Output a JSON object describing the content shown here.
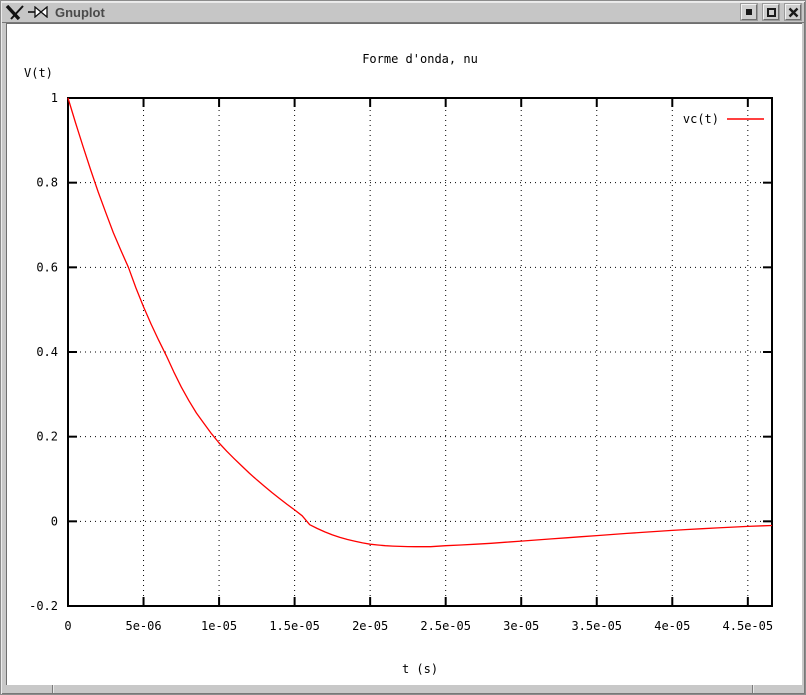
{
  "window": {
    "title": "Gnuplot",
    "titlebar_icons": [
      "x11-logo",
      "pushpin"
    ],
    "titlebar_buttons": [
      {
        "name": "minimize",
        "glyph": "filled-square"
      },
      {
        "name": "maximize",
        "glyph": "hollow-square"
      },
      {
        "name": "close",
        "glyph": "x"
      }
    ]
  },
  "colors": {
    "curve": "#ff0000",
    "titlebar_bg": "#c6c6c6",
    "window_frame": "#c8c8c8",
    "plot_bg": "#ffffff",
    "axis": "#000000",
    "grid": "#000000",
    "title_text": "#4a4a4a"
  },
  "chart_data": {
    "type": "line",
    "title": "Forme d'onda, nu",
    "xlabel": "t (s)",
    "ylabel": "V(t)",
    "xlim": [
      0,
      4.66e-05
    ],
    "ylim": [
      -0.2,
      1.0
    ],
    "grid": true,
    "legend_position": "top-right-inside",
    "xticks": [
      {
        "t": 0,
        "label": "0"
      },
      {
        "t": 5e-06,
        "label": "5e-06"
      },
      {
        "t": 1e-05,
        "label": "1e-05"
      },
      {
        "t": 1.5e-05,
        "label": "1.5e-05"
      },
      {
        "t": 2e-05,
        "label": "2e-05"
      },
      {
        "t": 2.5e-05,
        "label": "2.5e-05"
      },
      {
        "t": 3e-05,
        "label": "3e-05"
      },
      {
        "t": 3.5e-05,
        "label": "3.5e-05"
      },
      {
        "t": 4e-05,
        "label": "4e-05"
      },
      {
        "t": 4.5e-05,
        "label": "4.5e-05"
      }
    ],
    "yticks": [
      {
        "v": 1,
        "label": "1"
      },
      {
        "v": 0.8,
        "label": "0.8"
      },
      {
        "v": 0.6,
        "label": "0.6"
      },
      {
        "v": 0.4,
        "label": "0.4"
      },
      {
        "v": 0.2,
        "label": "0.2"
      },
      {
        "v": 0,
        "label": "0"
      },
      {
        "v": -0.2,
        "label": "-0.2"
      }
    ],
    "series": [
      {
        "name": "vc(t)",
        "color": "#ff0000",
        "points": [
          [
            0,
            1.0
          ],
          [
            5e-07,
            0.941
          ],
          [
            1e-06,
            0.885
          ],
          [
            1.5e-06,
            0.83
          ],
          [
            2e-06,
            0.778
          ],
          [
            2.5e-06,
            0.729
          ],
          [
            3e-06,
            0.682
          ],
          [
            3.5e-06,
            0.64
          ],
          [
            4e-06,
            0.6
          ],
          [
            4.5e-06,
            0.551
          ],
          [
            5e-06,
            0.507
          ],
          [
            5.5e-06,
            0.466
          ],
          [
            6e-06,
            0.428
          ],
          [
            6.5e-06,
            0.392
          ],
          [
            7e-06,
            0.353
          ],
          [
            7.5e-06,
            0.317
          ],
          [
            8e-06,
            0.285
          ],
          [
            8.5e-06,
            0.256
          ],
          [
            9e-06,
            0.231
          ],
          [
            9.5e-06,
            0.207
          ],
          [
            1e-05,
            0.185
          ],
          [
            1.05e-05,
            0.166
          ],
          [
            1.1e-05,
            0.148
          ],
          [
            1.15e-05,
            0.131
          ],
          [
            1.2e-05,
            0.114
          ],
          [
            1.25e-05,
            0.098
          ],
          [
            1.3e-05,
            0.083
          ],
          [
            1.35e-05,
            0.068
          ],
          [
            1.4e-05,
            0.054
          ],
          [
            1.45e-05,
            0.04
          ],
          [
            1.5e-05,
            0.027
          ],
          [
            1.55e-05,
            0.013
          ],
          [
            1.6e-05,
            -0.008
          ],
          [
            1.65e-05,
            -0.017
          ],
          [
            1.7e-05,
            -0.025
          ],
          [
            1.75e-05,
            -0.032
          ],
          [
            1.8e-05,
            -0.038
          ],
          [
            1.85e-05,
            -0.043
          ],
          [
            1.9e-05,
            -0.047
          ],
          [
            1.95e-05,
            -0.051
          ],
          [
            2e-05,
            -0.054
          ],
          [
            2.05e-05,
            -0.056
          ],
          [
            2.1e-05,
            -0.0575
          ],
          [
            2.15e-05,
            -0.0585
          ],
          [
            2.2e-05,
            -0.0592
          ],
          [
            2.25e-05,
            -0.0597
          ],
          [
            2.3e-05,
            -0.06
          ],
          [
            2.4e-05,
            -0.06
          ],
          [
            2.5e-05,
            -0.0575
          ],
          [
            2.6e-05,
            -0.056
          ],
          [
            2.7e-05,
            -0.054
          ],
          [
            2.8e-05,
            -0.0518
          ],
          [
            2.9e-05,
            -0.0494
          ],
          [
            3e-05,
            -0.0468
          ],
          [
            3.1e-05,
            -0.0442
          ],
          [
            3.2e-05,
            -0.0415
          ],
          [
            3.3e-05,
            -0.0388
          ],
          [
            3.4e-05,
            -0.0362
          ],
          [
            3.5e-05,
            -0.0336
          ],
          [
            3.6e-05,
            -0.031
          ],
          [
            3.7e-05,
            -0.0285
          ],
          [
            3.8e-05,
            -0.0261
          ],
          [
            3.9e-05,
            -0.0238
          ],
          [
            4e-05,
            -0.0215
          ],
          [
            4.1e-05,
            -0.0194
          ],
          [
            4.2e-05,
            -0.0174
          ],
          [
            4.3e-05,
            -0.0155
          ],
          [
            4.4e-05,
            -0.0137
          ],
          [
            4.5e-05,
            -0.012
          ],
          [
            4.6e-05,
            -0.0105
          ],
          [
            4.66e-05,
            -0.0098
          ]
        ]
      }
    ]
  }
}
